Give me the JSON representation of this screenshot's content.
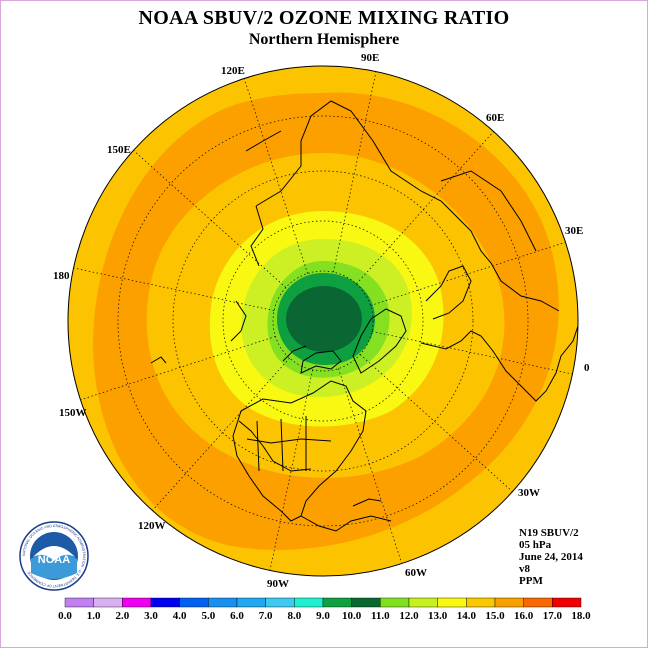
{
  "header": {
    "title": "NOAA SBUV/2 OZONE MIXING RATIO",
    "subtitle": "Northern Hemisphere"
  },
  "longitude_labels": [
    "0",
    "30E",
    "60E",
    "90E",
    "120E",
    "150E",
    "180",
    "150W",
    "120W",
    "90W",
    "60W",
    "30W"
  ],
  "info": {
    "instrument": "N19 SBUV/2",
    "level": "05 hPa",
    "date": "June 24, 2014",
    "version": "v8",
    "units": "PPM"
  },
  "logo": {
    "text": "NOAA",
    "ring_text": "NATIONAL OCEANIC AND ATMOSPHERIC ADMINISTRATION · U.S. DEPARTMENT OF COMMERCE"
  },
  "colorbar": {
    "tick_labels": [
      "0.0",
      "1.0",
      "2.0",
      "3.0",
      "4.0",
      "5.0",
      "6.0",
      "7.0",
      "8.0",
      "9.0",
      "10.0",
      "11.0",
      "12.0",
      "13.0",
      "14.0",
      "15.0",
      "16.0",
      "17.0",
      "18.0"
    ],
    "colors": [
      "#c080f0",
      "#d8b0f0",
      "#f000f0",
      "#0000f0",
      "#0060f0",
      "#1890f0",
      "#20a8f0",
      "#40c8f0",
      "#20f0d0",
      "#10a040",
      "#086830",
      "#80e020",
      "#c8f020",
      "#f8f810",
      "#f8c800",
      "#f8a000",
      "#f86800",
      "#f00000",
      "#805040"
    ]
  },
  "map_colors": {
    "outer": "#fcc400",
    "band": "#fca000",
    "yellow": "#f8f812",
    "yellow_green": "#cdf024",
    "light_green": "#85e022",
    "green": "#0ea040",
    "dark_green": "#0a6632",
    "coast": "#000000"
  }
}
